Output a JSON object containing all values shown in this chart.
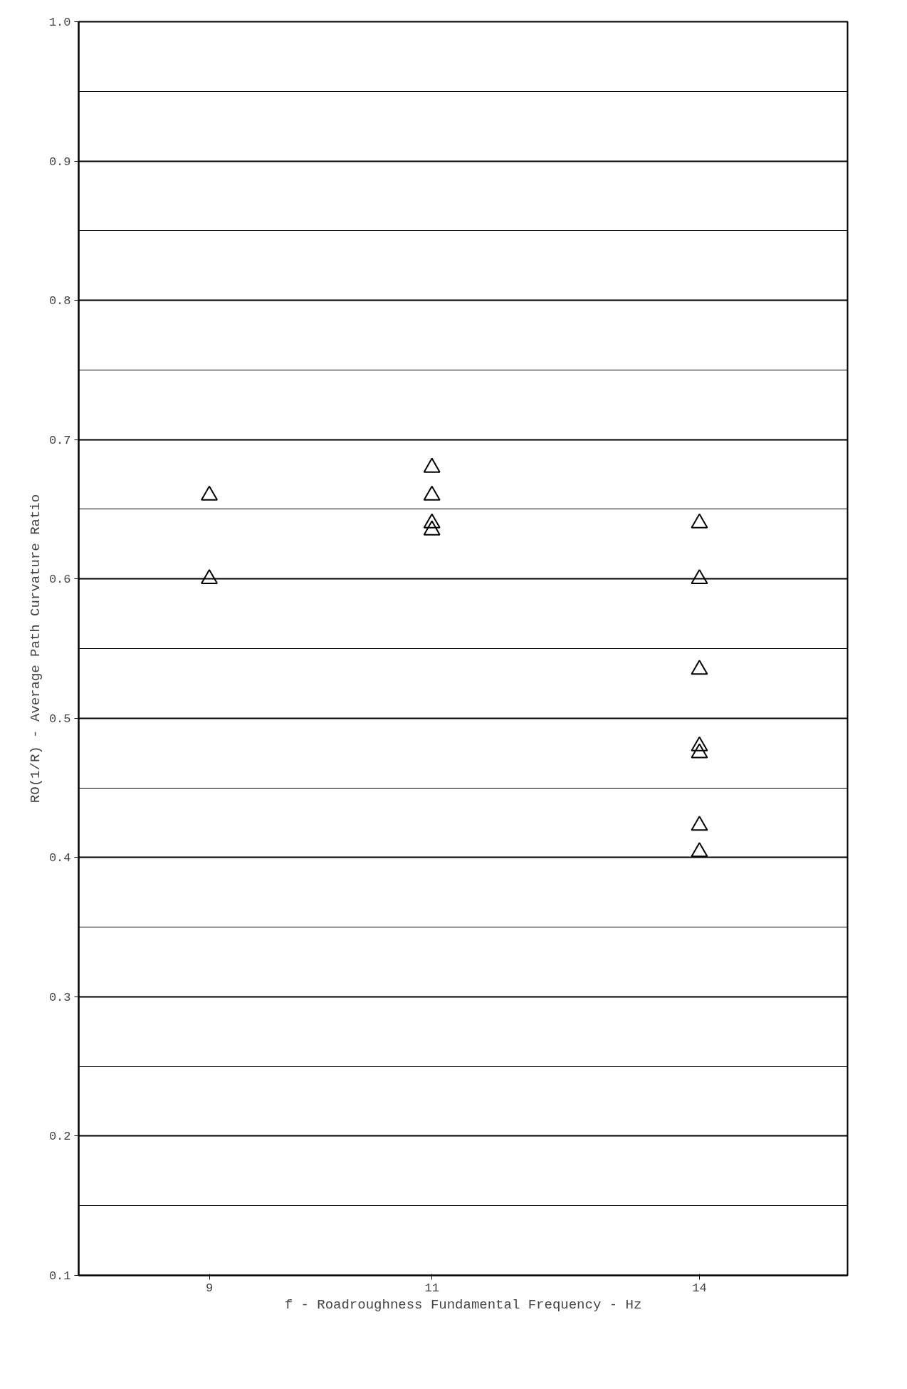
{
  "chart_data": {
    "type": "scatter",
    "xlabel": "f - Roadroughness Fundamental Frequency - Hz",
    "ylabel": "RO(1/R) - Average Path Curvature Ratio",
    "series": [
      {
        "color": "#000000",
        "x": [
          9,
          9,
          11,
          11,
          11,
          11,
          14,
          14,
          14,
          14,
          14,
          14,
          14
        ],
        "values": [
          0.66,
          0.6,
          0.68,
          0.66,
          0.64,
          0.635,
          0.64,
          0.6,
          0.535,
          0.48,
          0.475,
          0.423,
          0.404
        ]
      }
    ],
    "log": "x",
    "xlim": [
      8,
      16
    ],
    "xticks": [
      9,
      11,
      14
    ],
    "ylim": [
      0.1,
      1.0
    ],
    "yticks": [
      {
        "value": 0.1,
        "label": "0.1"
      },
      {
        "value": 0.2,
        "label": "0.2"
      },
      {
        "value": 0.3,
        "label": "0.3"
      },
      {
        "value": 0.4,
        "label": "0.4"
      },
      {
        "value": 0.5,
        "label": "0.5"
      },
      {
        "value": 0.6,
        "label": "0.6"
      },
      {
        "value": 0.7,
        "label": "0.7"
      },
      {
        "value": 0.8,
        "label": "0.8"
      },
      {
        "value": 0.9,
        "label": "0.9"
      },
      {
        "value": 1.0,
        "label": "1.0"
      }
    ],
    "grid": "y",
    "marker": "triangle"
  }
}
